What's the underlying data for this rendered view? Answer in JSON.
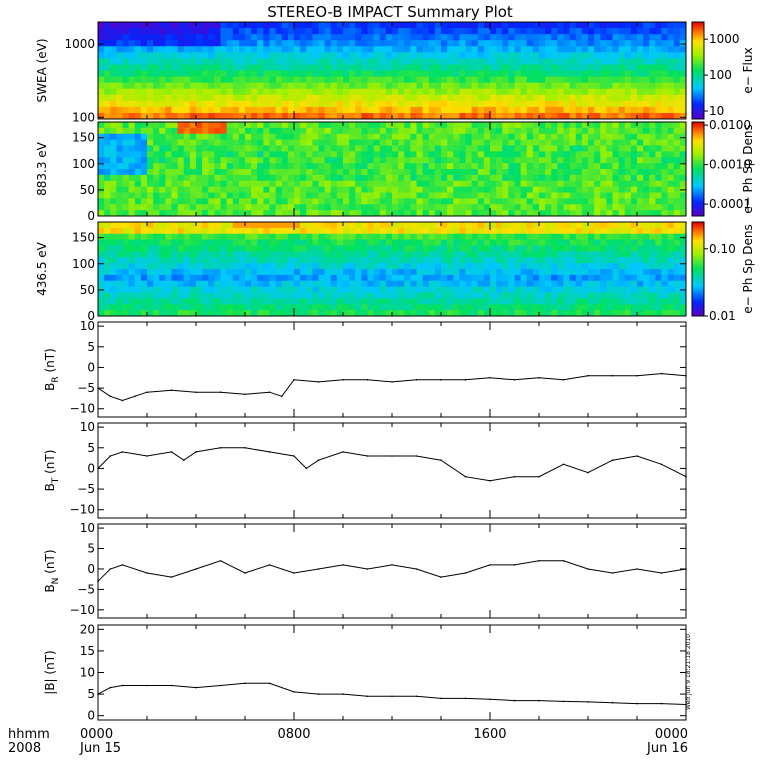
{
  "title": "STEREO-B IMPACT Summary Plot",
  "stamp": "Wed Jun 9 18:21:18 2010",
  "time_axis": {
    "corner_top": "hhmm",
    "corner_bottom": "2008",
    "ticks": [
      {
        "hour": 0,
        "label": "0000",
        "sub": "Jun 15"
      },
      {
        "hour": 8,
        "label": "0800",
        "sub": ""
      },
      {
        "hour": 16,
        "label": "1600",
        "sub": ""
      },
      {
        "hour": 24,
        "label": "0000",
        "sub": "Jun 16"
      }
    ],
    "range_hours": [
      0,
      24
    ]
  },
  "chart_data": [
    {
      "type": "heatmap",
      "ylabel": "SWEA (eV)",
      "yscale": "log",
      "ylim": [
        95,
        2000
      ],
      "yticks": [
        "100",
        "1000"
      ],
      "colorbar": {
        "label": "e− Flux",
        "scale": "log",
        "range": [
          6,
          3000
        ],
        "ticks": [
          "10",
          "100",
          "1000"
        ]
      }
    },
    {
      "type": "heatmap",
      "ylabel": "883.3 eV",
      "ylim": [
        0,
        180
      ],
      "yticks": [
        "0",
        "50",
        "100",
        "150"
      ],
      "colorbar": {
        "label": "e− Ph Sp Dens",
        "scale": "log",
        "range": [
          5e-05,
          0.012
        ],
        "ticks": [
          "0.0001",
          "0.0010",
          "0.0100"
        ]
      }
    },
    {
      "type": "heatmap",
      "ylabel": "436.5 eV",
      "ylim": [
        0,
        180
      ],
      "yticks": [
        "0",
        "50",
        "100",
        "150"
      ],
      "colorbar": {
        "label": "e− Ph Sp Dens",
        "scale": "log",
        "range": [
          0.01,
          0.25
        ],
        "ticks": [
          "0.01",
          "0.10"
        ]
      }
    },
    {
      "type": "line",
      "ylabel": "B_R (nT)",
      "ylabel_main": "B",
      "ylabel_sub": "R",
      "ylabel_unit": "(nT)",
      "ylim": [
        -12,
        11
      ],
      "yticks": [
        "−10",
        "−5",
        "0",
        "5",
        "10"
      ],
      "x": [
        0,
        0.5,
        1,
        1.5,
        2,
        3,
        4,
        5,
        6,
        7,
        7.5,
        8,
        9,
        10,
        11,
        12,
        13,
        14,
        15,
        16,
        17,
        18,
        19,
        20,
        21,
        22,
        23,
        24
      ],
      "y": [
        -5,
        -7,
        -8,
        -7,
        -6,
        -5.5,
        -6,
        -6,
        -6.5,
        -6,
        -7,
        -3,
        -3.5,
        -3,
        -3,
        -3.5,
        -3,
        -3,
        -3,
        -2.5,
        -3,
        -2.5,
        -3,
        -2,
        -2,
        -2,
        -1.5,
        -2
      ]
    },
    {
      "type": "line",
      "ylabel": "B_T (nT)",
      "ylabel_main": "B",
      "ylabel_sub": "T",
      "ylabel_unit": "(nT)",
      "ylim": [
        -12,
        11
      ],
      "yticks": [
        "−10",
        "−5",
        "0",
        "5",
        "10"
      ],
      "x": [
        0,
        0.5,
        1,
        2,
        3,
        3.5,
        4,
        5,
        6,
        7,
        8,
        8.5,
        9,
        10,
        11,
        12,
        13,
        14,
        15,
        16,
        17,
        18,
        19,
        20,
        21,
        22,
        23,
        24
      ],
      "y": [
        0,
        3,
        4,
        3,
        4,
        2,
        4,
        5,
        5,
        4,
        3,
        0,
        2,
        4,
        3,
        3,
        3,
        2,
        -2,
        -3,
        -2,
        -2,
        1,
        -1,
        2,
        3,
        1,
        -2
      ]
    },
    {
      "type": "line",
      "ylabel": "B_N (nT)",
      "ylabel_main": "B",
      "ylabel_sub": "N",
      "ylabel_unit": "(nT)",
      "ylim": [
        -12,
        11
      ],
      "yticks": [
        "−10",
        "−5",
        "0",
        "5",
        "10"
      ],
      "x": [
        0,
        0.5,
        1,
        2,
        3,
        4,
        5,
        6,
        7,
        8,
        9,
        10,
        11,
        12,
        13,
        14,
        15,
        16,
        17,
        18,
        19,
        20,
        21,
        22,
        23,
        24
      ],
      "y": [
        -3,
        0,
        1,
        -1,
        -2,
        0,
        2,
        -1,
        1,
        -1,
        0,
        1,
        0,
        1,
        0,
        -2,
        -1,
        1,
        1,
        2,
        2,
        0,
        -1,
        0,
        -1,
        0
      ]
    },
    {
      "type": "line",
      "ylabel": "|B| (nT)",
      "ylim": [
        -1,
        21
      ],
      "yticks": [
        "0",
        "5",
        "10",
        "15",
        "20"
      ],
      "x": [
        0,
        0.5,
        1,
        2,
        3,
        4,
        5,
        6,
        7,
        8,
        9,
        10,
        11,
        12,
        13,
        14,
        15,
        16,
        17,
        18,
        19,
        20,
        21,
        22,
        23,
        24
      ],
      "y": [
        5,
        6.5,
        7,
        7,
        7,
        6.5,
        7,
        7.5,
        7.5,
        5.5,
        5,
        5,
        4.5,
        4.5,
        4.5,
        4,
        4,
        3.8,
        3.5,
        3.5,
        3.3,
        3.2,
        3,
        2.8,
        2.8,
        2.6
      ]
    }
  ]
}
